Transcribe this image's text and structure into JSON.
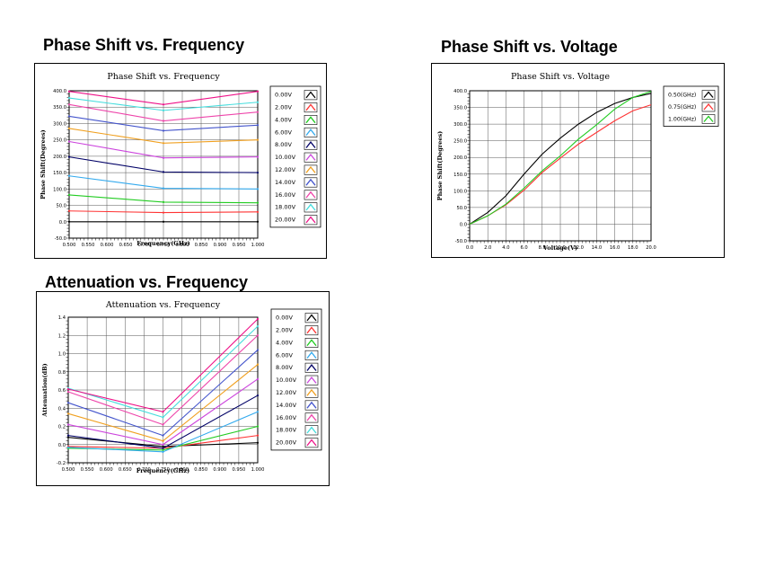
{
  "page": {
    "titles": [
      "Phase Shift vs. Frequency",
      "Phase Shift vs. Voltage",
      "Attenuation vs. Frequency"
    ]
  },
  "chart_data": [
    {
      "type": "line",
      "title": "Phase Shift vs. Frequency",
      "xlabel": "Frequency(GHz)",
      "ylabel": "Phase Shift(Degrees)",
      "xlim": [
        0.5,
        1.0
      ],
      "ylim": [
        -50,
        400
      ],
      "xticks": [
        "0.500",
        "0.550",
        "0.600",
        "0.650",
        "0.700",
        "0.750",
        "0.800",
        "0.850",
        "0.900",
        "0.950",
        "1.000"
      ],
      "yticks": [
        "-50.0",
        "0.0",
        "50.0",
        "100.0",
        "150.0",
        "200.0",
        "250.0",
        "300.0",
        "350.0",
        "400.0"
      ],
      "grid": true,
      "legend_position": "right",
      "x": [
        0.5,
        0.75,
        1.0
      ],
      "series": [
        {
          "name": "0.00V",
          "color": "#000000",
          "values": [
            0,
            0,
            0
          ]
        },
        {
          "name": "2.00V",
          "color": "#ff3333",
          "values": [
            33,
            28,
            30
          ]
        },
        {
          "name": "4.00V",
          "color": "#22cc22",
          "values": [
            82,
            60,
            58
          ]
        },
        {
          "name": "6.00V",
          "color": "#33aaee",
          "values": [
            140,
            102,
            100
          ]
        },
        {
          "name": "8.00V",
          "color": "#000066",
          "values": [
            198,
            152,
            150
          ]
        },
        {
          "name": "10.00V",
          "color": "#cc44dd",
          "values": [
            245,
            195,
            198
          ]
        },
        {
          "name": "12.00V",
          "color": "#f0a020",
          "values": [
            285,
            240,
            250
          ]
        },
        {
          "name": "14.00V",
          "color": "#4455cc",
          "values": [
            322,
            278,
            295
          ]
        },
        {
          "name": "16.00V",
          "color": "#ee44aa",
          "values": [
            358,
            308,
            335
          ]
        },
        {
          "name": "18.00V",
          "color": "#44dddd",
          "values": [
            378,
            340,
            365
          ]
        },
        {
          "name": "20.00V",
          "color": "#ee1188",
          "values": [
            398,
            358,
            398
          ]
        }
      ]
    },
    {
      "type": "line",
      "title": "Phase Shift vs. Voltage",
      "xlabel": "Voltage(V)",
      "ylabel": "Phase Shift(Degrees)",
      "xlim": [
        0,
        20
      ],
      "ylim": [
        -50,
        400
      ],
      "xticks": [
        "0.0",
        "2.0",
        "4.0",
        "6.0",
        "8.0",
        "10.0",
        "12.0",
        "14.0",
        "16.0",
        "18.0",
        "20.0"
      ],
      "yticks": [
        "-50.0",
        "0.0",
        "50.0",
        "100.0",
        "150.0",
        "200.0",
        "250.0",
        "300.0",
        "350.0",
        "400.0"
      ],
      "grid": true,
      "legend_position": "top-right",
      "x": [
        0,
        2,
        4,
        6,
        8,
        10,
        12,
        14,
        16,
        18,
        20
      ],
      "series": [
        {
          "name": "0.50(GHz)",
          "color": "#000000",
          "values": [
            0,
            35,
            85,
            150,
            210,
            258,
            300,
            335,
            362,
            380,
            392
          ]
        },
        {
          "name": "0.75(GHz)",
          "color": "#ff3333",
          "values": [
            0,
            25,
            58,
            102,
            155,
            198,
            240,
            275,
            310,
            340,
            358
          ]
        },
        {
          "name": "1.00(GHz)",
          "color": "#22cc22",
          "values": [
            0,
            25,
            60,
            108,
            160,
            205,
            255,
            298,
            345,
            380,
            398
          ]
        }
      ]
    },
    {
      "type": "line",
      "title": "Attenuation vs. Frequency",
      "xlabel": "Frequency(GHz)",
      "ylabel": "Attenuation(dB)",
      "xlim": [
        0.5,
        1.0
      ],
      "ylim": [
        -0.2,
        1.4
      ],
      "xticks": [
        "0.500",
        "0.550",
        "0.600",
        "0.650",
        "0.700",
        "0.750",
        "0.800",
        "0.850",
        "0.900",
        "0.950",
        "1.000"
      ],
      "yticks": [
        "-0.2",
        "0.0",
        "0.2",
        "0.4",
        "0.6",
        "0.8",
        "1.0",
        "1.2",
        "1.4"
      ],
      "grid": true,
      "legend_position": "right",
      "x": [
        0.5,
        0.75,
        1.0
      ],
      "series": [
        {
          "name": "0.00V",
          "color": "#000000",
          "values": [
            0.08,
            -0.02,
            0.02
          ]
        },
        {
          "name": "2.00V",
          "color": "#ff3333",
          "values": [
            -0.02,
            -0.04,
            0.1
          ]
        },
        {
          "name": "4.00V",
          "color": "#22cc22",
          "values": [
            -0.04,
            -0.06,
            0.2
          ]
        },
        {
          "name": "6.00V",
          "color": "#33aaee",
          "values": [
            -0.03,
            -0.08,
            0.36
          ]
        },
        {
          "name": "8.00V",
          "color": "#000066",
          "values": [
            0.1,
            -0.04,
            0.54
          ]
        },
        {
          "name": "10.00V",
          "color": "#cc44dd",
          "values": [
            0.22,
            0.0,
            0.72
          ]
        },
        {
          "name": "12.00V",
          "color": "#f0a020",
          "values": [
            0.34,
            0.04,
            0.88
          ]
        },
        {
          "name": "14.00V",
          "color": "#4455cc",
          "values": [
            0.46,
            0.1,
            1.04
          ]
        },
        {
          "name": "16.00V",
          "color": "#ee44aa",
          "values": [
            0.58,
            0.22,
            1.2
          ]
        },
        {
          "name": "18.00V",
          "color": "#44dddd",
          "values": [
            0.62,
            0.3,
            1.3
          ]
        },
        {
          "name": "20.00V",
          "color": "#ee1188",
          "values": [
            0.61,
            0.36,
            1.38
          ]
        }
      ]
    }
  ]
}
